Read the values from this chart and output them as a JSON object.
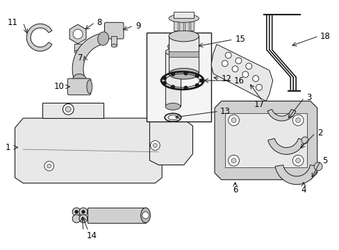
{
  "bg_color": "#ffffff",
  "line_color": "#1a1a1a",
  "fill_light": "#e8e8e8",
  "fill_mid": "#d0d0d0",
  "fill_dark": "#b8b8b8",
  "figsize": [
    4.89,
    3.6
  ],
  "dpi": 100,
  "font_size": 8.5
}
